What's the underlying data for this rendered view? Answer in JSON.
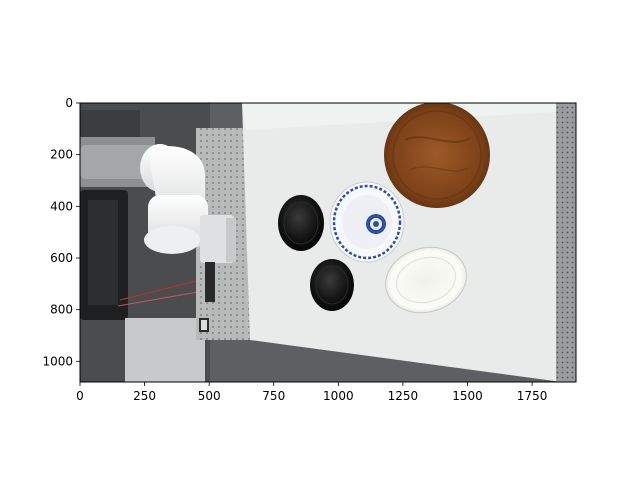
{
  "figure": {
    "x_axis": {
      "ticks": [
        0,
        250,
        500,
        750,
        1000,
        1250,
        1500,
        1750
      ],
      "range": [
        0,
        1920
      ]
    },
    "y_axis": {
      "ticks": [
        0,
        200,
        400,
        600,
        800,
        1000
      ],
      "range": [
        0,
        1080
      ],
      "inverted": true
    },
    "colors": {
      "table_top": "#e9eaea",
      "breadboard": "#b4b6b6",
      "robot_arm": "#f2f3f4",
      "dark_bowl": "#141414",
      "wood_plate": "#8a4a1c",
      "porcelain_pattern": "#2f4f9a",
      "white_dish": "#f7f7f3",
      "background_equipment": "#4a4c4e"
    }
  }
}
